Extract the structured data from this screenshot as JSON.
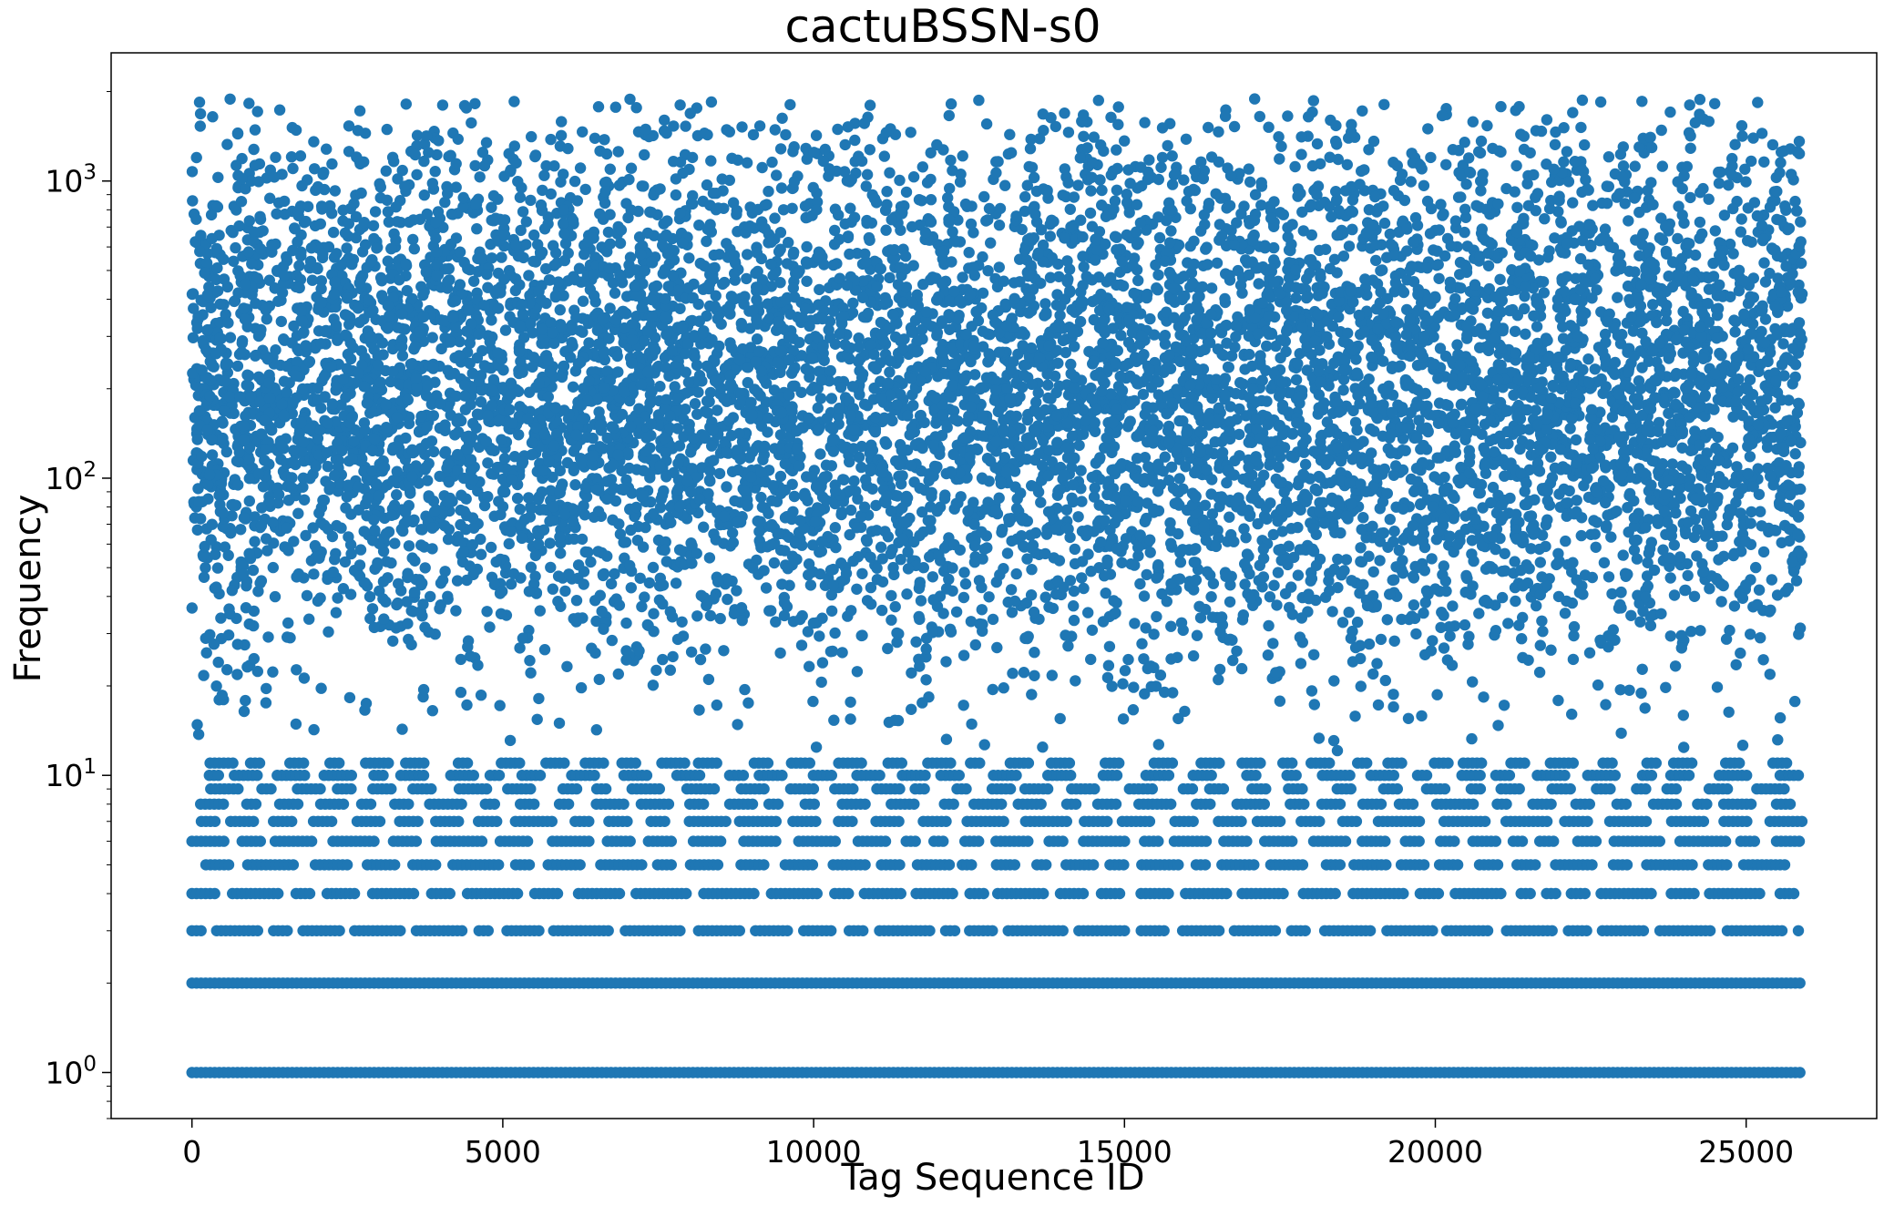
{
  "chart_data": {
    "type": "scatter",
    "title": "cactuBSSN-s0",
    "xlabel": "Tag Sequence ID",
    "ylabel": "Frequency",
    "xlim": [
      -1300,
      27100
    ],
    "ylim": [
      0.7,
      2700
    ],
    "yscale": "log",
    "grid": false,
    "marker_color": "#1f77b4",
    "x_ticks": [
      {
        "value": 0,
        "label": "0"
      },
      {
        "value": 5000,
        "label": "5000"
      },
      {
        "value": 10000,
        "label": "10000"
      },
      {
        "value": 15000,
        "label": "15000"
      },
      {
        "value": 20000,
        "label": "20000"
      },
      {
        "value": 25000,
        "label": "25000"
      }
    ],
    "y_ticks": [
      {
        "value": 1,
        "base": "10",
        "exp": "0"
      },
      {
        "value": 10,
        "base": "10",
        "exp": "1"
      },
      {
        "value": 100,
        "base": "10",
        "exp": "2"
      },
      {
        "value": 1000,
        "base": "10",
        "exp": "3"
      }
    ],
    "x_range_of_points": [
      0,
      25900
    ],
    "point_bands": [
      {
        "y": 1,
        "density": 1.0
      },
      {
        "y": 2,
        "density": 1.0
      },
      {
        "y": 3,
        "density": 0.9
      },
      {
        "y": 4,
        "density": 0.85
      },
      {
        "y": 5,
        "density": 0.7
      },
      {
        "y": 6,
        "density": 0.75
      },
      {
        "y": 7,
        "density": 0.65
      },
      {
        "y": 8,
        "density": 0.55
      },
      {
        "y": 9,
        "density": 0.4
      },
      {
        "y": 10,
        "density": 0.35
      },
      {
        "y": 11,
        "density": 0.3
      }
    ],
    "scatter_continuum": {
      "y_min": 12,
      "y_max": 1900,
      "peak_y": 200,
      "approx_points": 9000
    }
  }
}
